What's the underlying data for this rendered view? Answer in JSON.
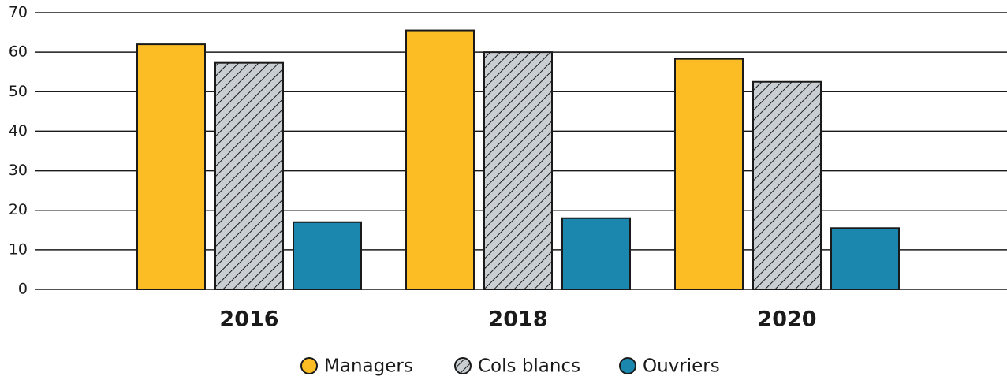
{
  "chart_data": {
    "type": "bar",
    "categories": [
      "2016",
      "2018",
      "2020"
    ],
    "series": [
      {
        "name": "Managers",
        "color": "#fbbd23",
        "values": [
          62,
          65.5,
          58.3
        ]
      },
      {
        "name": "Cols blancs",
        "color": "#c9ced3",
        "hatch": true,
        "values": [
          57.3,
          60,
          52.5
        ]
      },
      {
        "name": "Ouvriers",
        "color": "#1c87ae",
        "values": [
          17,
          18,
          15.5
        ]
      }
    ],
    "ylim": [
      0,
      70
    ],
    "yticks": [
      0,
      10,
      20,
      30,
      40,
      50,
      60,
      70
    ],
    "grid": true,
    "legend": "bottom"
  }
}
